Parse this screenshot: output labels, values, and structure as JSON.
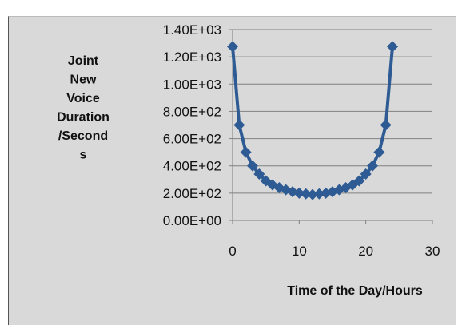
{
  "caption": "",
  "chart_data": {
    "type": "line",
    "title": "",
    "xlabel": "Time of the Day/Hours",
    "ylabel_lines": [
      "Joint",
      "New",
      "Voice",
      "Duration",
      "/Second",
      "s"
    ],
    "xlim": [
      0,
      30
    ],
    "ylim": [
      0,
      1400
    ],
    "x_ticks": [
      0,
      10,
      20,
      30
    ],
    "x_tick_labels": [
      "0",
      "10",
      "20",
      "30"
    ],
    "y_ticks": [
      0,
      200,
      400,
      600,
      800,
      1000,
      1200,
      1400
    ],
    "y_tick_labels": [
      "0.00E+00",
      "2.00E+02",
      "4.00E+02",
      "6.00E+02",
      "8.00E+02",
      "1.00E+03",
      "1.20E+03",
      "1.40E+03"
    ],
    "grid": true,
    "series": [
      {
        "color": "#2e5b93",
        "marker": "diamond",
        "x": [
          0,
          1,
          2,
          3,
          4,
          5,
          6,
          7,
          8,
          9,
          10,
          11,
          12,
          13,
          14,
          15,
          16,
          17,
          18,
          19,
          20,
          21,
          22,
          23,
          24
        ],
        "y": [
          1275,
          700,
          500,
          400,
          340,
          290,
          260,
          240,
          225,
          210,
          200,
          195,
          190,
          195,
          200,
          210,
          225,
          240,
          260,
          290,
          340,
          400,
          500,
          700,
          1275
        ]
      }
    ]
  }
}
